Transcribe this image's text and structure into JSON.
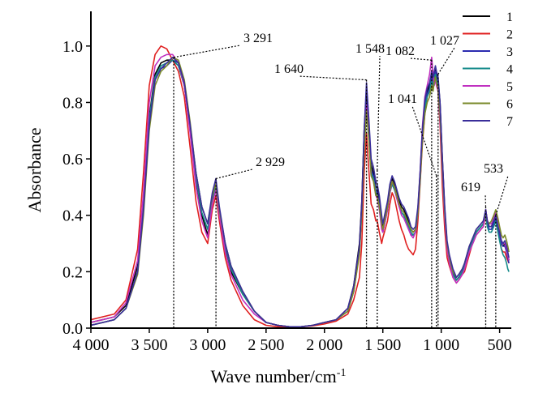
{
  "chart_data": {
    "type": "line",
    "title": "",
    "xlabel": "Wave number/cm",
    "xlabel_sup": "-1",
    "ylabel": "Absorbance",
    "x_reversed": true,
    "xlim": [
      4000,
      400
    ],
    "ylim": [
      0,
      1.1
    ],
    "x_ticks": [
      4000,
      3500,
      3000,
      2500,
      2000,
      1500,
      1000,
      500
    ],
    "x_tick_labels": [
      "4 000",
      "3 500",
      "3 000",
      "2 500",
      "2 000",
      "1 500",
      "1 000",
      "500"
    ],
    "y_ticks": [
      0,
      0.2,
      0.4,
      0.6,
      0.8,
      1.0
    ],
    "y_tick_labels": [
      "0.0",
      "0.2",
      "0.4",
      "0.6",
      "0.8",
      "1.0"
    ],
    "grid": false,
    "legend_position": "top-right",
    "annotations": [
      {
        "label": "3 291",
        "x": 3291,
        "y": 0.96
      },
      {
        "label": "2 929",
        "x": 2929,
        "y": 0.53
      },
      {
        "label": "1 640",
        "x": 1640,
        "y": 0.88
      },
      {
        "label": "1 548",
        "x": 1548,
        "y": 0.56
      },
      {
        "label": "1 041",
        "x": 1041,
        "y": 0.54
      },
      {
        "label": "1 082",
        "x": 1082,
        "y": 0.95
      },
      {
        "label": "1 027",
        "x": 1027,
        "y": 0.9
      },
      {
        "label": "619",
        "x": 619,
        "y": 0.43
      },
      {
        "label": "533",
        "x": 533,
        "y": 0.4
      }
    ],
    "x": [
      4000,
      3800,
      3700,
      3600,
      3550,
      3500,
      3450,
      3400,
      3350,
      3300,
      3250,
      3200,
      3150,
      3100,
      3050,
      3000,
      2960,
      2930,
      2900,
      2850,
      2800,
      2700,
      2600,
      2500,
      2400,
      2300,
      2200,
      2100,
      2000,
      1900,
      1800,
      1750,
      1700,
      1680,
      1660,
      1640,
      1620,
      1600,
      1580,
      1560,
      1548,
      1530,
      1510,
      1500,
      1480,
      1460,
      1440,
      1420,
      1400,
      1380,
      1360,
      1340,
      1320,
      1300,
      1280,
      1260,
      1240,
      1220,
      1200,
      1180,
      1160,
      1140,
      1120,
      1100,
      1082,
      1070,
      1060,
      1050,
      1041,
      1027,
      1010,
      990,
      970,
      950,
      930,
      900,
      870,
      850,
      820,
      800,
      780,
      760,
      740,
      720,
      700,
      680,
      660,
      640,
      619,
      605,
      590,
      570,
      550,
      533,
      515,
      500,
      485,
      470,
      455,
      440,
      430,
      420
    ],
    "series": [
      {
        "name": "1",
        "color": "#000000",
        "values": [
          0.02,
          0.04,
          0.08,
          0.22,
          0.45,
          0.75,
          0.9,
          0.94,
          0.95,
          0.95,
          0.93,
          0.86,
          0.7,
          0.52,
          0.4,
          0.33,
          0.45,
          0.5,
          0.4,
          0.28,
          0.2,
          0.12,
          0.06,
          0.02,
          0.01,
          0.005,
          0.005,
          0.01,
          0.02,
          0.03,
          0.07,
          0.15,
          0.3,
          0.45,
          0.7,
          0.84,
          0.72,
          0.58,
          0.55,
          0.5,
          0.5,
          0.45,
          0.38,
          0.36,
          0.4,
          0.44,
          0.5,
          0.53,
          0.51,
          0.48,
          0.45,
          0.43,
          0.42,
          0.4,
          0.38,
          0.35,
          0.34,
          0.35,
          0.42,
          0.55,
          0.7,
          0.8,
          0.84,
          0.86,
          0.9,
          0.88,
          0.9,
          0.92,
          0.9,
          0.88,
          0.8,
          0.6,
          0.42,
          0.3,
          0.25,
          0.2,
          0.17,
          0.18,
          0.2,
          0.22,
          0.25,
          0.28,
          0.3,
          0.32,
          0.34,
          0.35,
          0.36,
          0.37,
          0.42,
          0.38,
          0.36,
          0.36,
          0.38,
          0.4,
          0.36,
          0.33,
          0.3,
          0.29,
          0.3,
          0.28,
          0.26,
          0.24
        ]
      },
      {
        "name": "2",
        "color": "#e02020",
        "values": [
          0.03,
          0.05,
          0.1,
          0.28,
          0.55,
          0.86,
          0.97,
          1.0,
          0.99,
          0.95,
          0.91,
          0.82,
          0.64,
          0.45,
          0.34,
          0.3,
          0.42,
          0.47,
          0.38,
          0.25,
          0.17,
          0.08,
          0.03,
          0.01,
          0.005,
          0.005,
          0.005,
          0.008,
          0.015,
          0.025,
          0.05,
          0.1,
          0.18,
          0.3,
          0.55,
          0.69,
          0.56,
          0.44,
          0.42,
          0.38,
          0.38,
          0.34,
          0.3,
          0.32,
          0.35,
          0.38,
          0.44,
          0.48,
          0.46,
          0.42,
          0.38,
          0.35,
          0.33,
          0.3,
          0.28,
          0.27,
          0.26,
          0.28,
          0.38,
          0.52,
          0.66,
          0.76,
          0.82,
          0.84,
          0.88,
          0.85,
          0.87,
          0.9,
          0.86,
          0.84,
          0.72,
          0.5,
          0.35,
          0.25,
          0.22,
          0.18,
          0.16,
          0.17,
          0.19,
          0.2,
          0.23,
          0.26,
          0.29,
          0.31,
          0.33,
          0.34,
          0.35,
          0.36,
          0.4,
          0.38,
          0.36,
          0.36,
          0.38,
          0.39,
          0.35,
          0.32,
          0.28,
          0.27,
          0.27,
          0.25,
          0.24,
          0.23
        ]
      },
      {
        "name": "3",
        "color": "#2b2bb0",
        "values": [
          0.01,
          0.03,
          0.07,
          0.2,
          0.42,
          0.72,
          0.88,
          0.92,
          0.93,
          0.95,
          0.94,
          0.87,
          0.72,
          0.55,
          0.43,
          0.37,
          0.47,
          0.51,
          0.42,
          0.3,
          0.22,
          0.13,
          0.06,
          0.02,
          0.01,
          0.005,
          0.005,
          0.01,
          0.02,
          0.03,
          0.06,
          0.13,
          0.27,
          0.42,
          0.66,
          0.8,
          0.7,
          0.56,
          0.54,
          0.49,
          0.48,
          0.44,
          0.36,
          0.34,
          0.38,
          0.42,
          0.48,
          0.52,
          0.5,
          0.46,
          0.43,
          0.41,
          0.4,
          0.38,
          0.36,
          0.33,
          0.33,
          0.34,
          0.41,
          0.54,
          0.69,
          0.79,
          0.83,
          0.85,
          0.89,
          0.87,
          0.89,
          0.91,
          0.89,
          0.87,
          0.78,
          0.58,
          0.41,
          0.29,
          0.24,
          0.19,
          0.17,
          0.18,
          0.2,
          0.22,
          0.25,
          0.28,
          0.3,
          0.32,
          0.34,
          0.35,
          0.36,
          0.37,
          0.41,
          0.37,
          0.35,
          0.35,
          0.37,
          0.39,
          0.35,
          0.33,
          0.3,
          0.29,
          0.29,
          0.27,
          0.25,
          0.23
        ]
      },
      {
        "name": "4",
        "color": "#148a8a",
        "values": [
          0.01,
          0.03,
          0.07,
          0.2,
          0.43,
          0.74,
          0.89,
          0.93,
          0.94,
          0.95,
          0.93,
          0.86,
          0.71,
          0.53,
          0.41,
          0.35,
          0.46,
          0.5,
          0.41,
          0.29,
          0.21,
          0.12,
          0.06,
          0.02,
          0.01,
          0.005,
          0.005,
          0.01,
          0.02,
          0.03,
          0.06,
          0.13,
          0.27,
          0.42,
          0.65,
          0.78,
          0.68,
          0.55,
          0.53,
          0.48,
          0.47,
          0.43,
          0.36,
          0.34,
          0.38,
          0.42,
          0.48,
          0.51,
          0.49,
          0.46,
          0.43,
          0.41,
          0.4,
          0.38,
          0.36,
          0.34,
          0.33,
          0.34,
          0.41,
          0.53,
          0.68,
          0.78,
          0.82,
          0.84,
          0.88,
          0.86,
          0.88,
          0.9,
          0.88,
          0.86,
          0.77,
          0.57,
          0.4,
          0.29,
          0.24,
          0.19,
          0.17,
          0.18,
          0.2,
          0.22,
          0.25,
          0.28,
          0.3,
          0.32,
          0.34,
          0.35,
          0.36,
          0.37,
          0.4,
          0.36,
          0.34,
          0.34,
          0.36,
          0.38,
          0.34,
          0.31,
          0.28,
          0.26,
          0.25,
          0.23,
          0.21,
          0.2
        ]
      },
      {
        "name": "5",
        "color": "#c030c0",
        "values": [
          0.02,
          0.04,
          0.09,
          0.24,
          0.48,
          0.8,
          0.93,
          0.96,
          0.97,
          0.97,
          0.94,
          0.86,
          0.69,
          0.5,
          0.38,
          0.32,
          0.44,
          0.49,
          0.4,
          0.27,
          0.19,
          0.1,
          0.05,
          0.02,
          0.01,
          0.005,
          0.005,
          0.01,
          0.02,
          0.03,
          0.07,
          0.14,
          0.28,
          0.43,
          0.67,
          0.79,
          0.68,
          0.54,
          0.52,
          0.47,
          0.46,
          0.42,
          0.35,
          0.34,
          0.38,
          0.42,
          0.48,
          0.52,
          0.5,
          0.46,
          0.43,
          0.4,
          0.39,
          0.37,
          0.35,
          0.33,
          0.32,
          0.34,
          0.42,
          0.56,
          0.72,
          0.82,
          0.86,
          0.9,
          0.96,
          0.9,
          0.86,
          0.88,
          0.86,
          0.84,
          0.74,
          0.55,
          0.39,
          0.28,
          0.23,
          0.18,
          0.16,
          0.17,
          0.19,
          0.21,
          0.24,
          0.27,
          0.29,
          0.31,
          0.33,
          0.34,
          0.35,
          0.36,
          0.42,
          0.38,
          0.37,
          0.37,
          0.39,
          0.41,
          0.37,
          0.34,
          0.31,
          0.3,
          0.3,
          0.28,
          0.26,
          0.24
        ]
      },
      {
        "name": "6",
        "color": "#7a8a2a",
        "values": [
          0.01,
          0.03,
          0.07,
          0.19,
          0.4,
          0.7,
          0.86,
          0.91,
          0.93,
          0.96,
          0.95,
          0.88,
          0.73,
          0.55,
          0.43,
          0.37,
          0.47,
          0.51,
          0.42,
          0.3,
          0.22,
          0.13,
          0.06,
          0.02,
          0.01,
          0.005,
          0.005,
          0.01,
          0.02,
          0.03,
          0.06,
          0.13,
          0.26,
          0.41,
          0.63,
          0.77,
          0.67,
          0.54,
          0.52,
          0.47,
          0.47,
          0.43,
          0.37,
          0.35,
          0.39,
          0.43,
          0.49,
          0.52,
          0.5,
          0.47,
          0.44,
          0.42,
          0.41,
          0.39,
          0.37,
          0.35,
          0.34,
          0.35,
          0.41,
          0.53,
          0.67,
          0.76,
          0.8,
          0.82,
          0.86,
          0.84,
          0.87,
          0.89,
          0.87,
          0.85,
          0.76,
          0.57,
          0.41,
          0.3,
          0.25,
          0.2,
          0.18,
          0.19,
          0.21,
          0.23,
          0.26,
          0.29,
          0.31,
          0.33,
          0.35,
          0.36,
          0.37,
          0.38,
          0.41,
          0.38,
          0.37,
          0.38,
          0.4,
          0.42,
          0.39,
          0.36,
          0.33,
          0.32,
          0.33,
          0.31,
          0.29,
          0.27
        ]
      },
      {
        "name": "7",
        "color": "#3a2e9a",
        "values": [
          0.01,
          0.03,
          0.07,
          0.2,
          0.42,
          0.72,
          0.88,
          0.92,
          0.94,
          0.96,
          0.94,
          0.87,
          0.72,
          0.55,
          0.43,
          0.37,
          0.48,
          0.53,
          0.43,
          0.3,
          0.22,
          0.13,
          0.06,
          0.02,
          0.01,
          0.005,
          0.005,
          0.01,
          0.02,
          0.03,
          0.07,
          0.15,
          0.29,
          0.44,
          0.7,
          0.87,
          0.74,
          0.6,
          0.57,
          0.52,
          0.51,
          0.47,
          0.4,
          0.37,
          0.41,
          0.45,
          0.51,
          0.54,
          0.52,
          0.49,
          0.46,
          0.44,
          0.43,
          0.41,
          0.39,
          0.36,
          0.35,
          0.36,
          0.43,
          0.56,
          0.71,
          0.81,
          0.85,
          0.87,
          0.91,
          0.89,
          0.91,
          0.93,
          0.91,
          0.89,
          0.8,
          0.6,
          0.43,
          0.31,
          0.26,
          0.21,
          0.18,
          0.19,
          0.21,
          0.23,
          0.26,
          0.29,
          0.31,
          0.33,
          0.35,
          0.36,
          0.37,
          0.38,
          0.42,
          0.38,
          0.36,
          0.36,
          0.38,
          0.4,
          0.36,
          0.34,
          0.31,
          0.3,
          0.31,
          0.29,
          0.27,
          0.25
        ]
      }
    ]
  }
}
